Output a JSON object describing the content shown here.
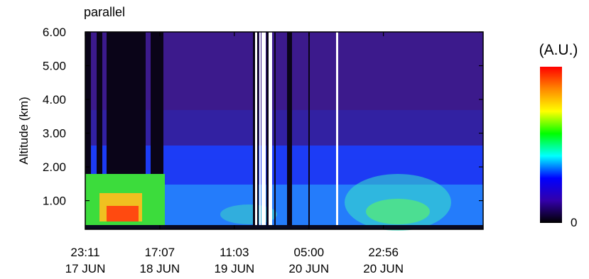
{
  "chart_data": {
    "type": "heatmap",
    "title": "parallel",
    "ylabel": "Altitude (km)",
    "xlabel": "",
    "ylim": [
      0.15,
      6.0
    ],
    "yticks": [
      {
        "value": 1.0,
        "label": "1.00"
      },
      {
        "value": 2.0,
        "label": "2.00"
      },
      {
        "value": 3.0,
        "label": "3.00"
      },
      {
        "value": 4.0,
        "label": "4.00"
      },
      {
        "value": 5.0,
        "label": "5.00"
      },
      {
        "value": 6.0,
        "label": "6.00"
      }
    ],
    "xlim_hours": [
      0,
      95.75
    ],
    "xticks": [
      {
        "hours": 0,
        "time": "23:11",
        "date": "17 JUN"
      },
      {
        "hours": 17.93,
        "time": "17:07",
        "date": "18 JUN"
      },
      {
        "hours": 35.87,
        "time": "11:03",
        "date": "19 JUN"
      },
      {
        "hours": 53.82,
        "time": "05:00",
        "date": "20 JUN"
      },
      {
        "hours": 71.75,
        "time": "22:56",
        "date": "20 JUN"
      }
    ],
    "colorbar": {
      "label": "(A.U.)",
      "min_label": "0",
      "colors": [
        "#ff0000",
        "#ff8800",
        "#ffff00",
        "#00ff00",
        "#00ffff",
        "#0000ff",
        "#3300aa",
        "#000000"
      ]
    },
    "grid": false
  }
}
